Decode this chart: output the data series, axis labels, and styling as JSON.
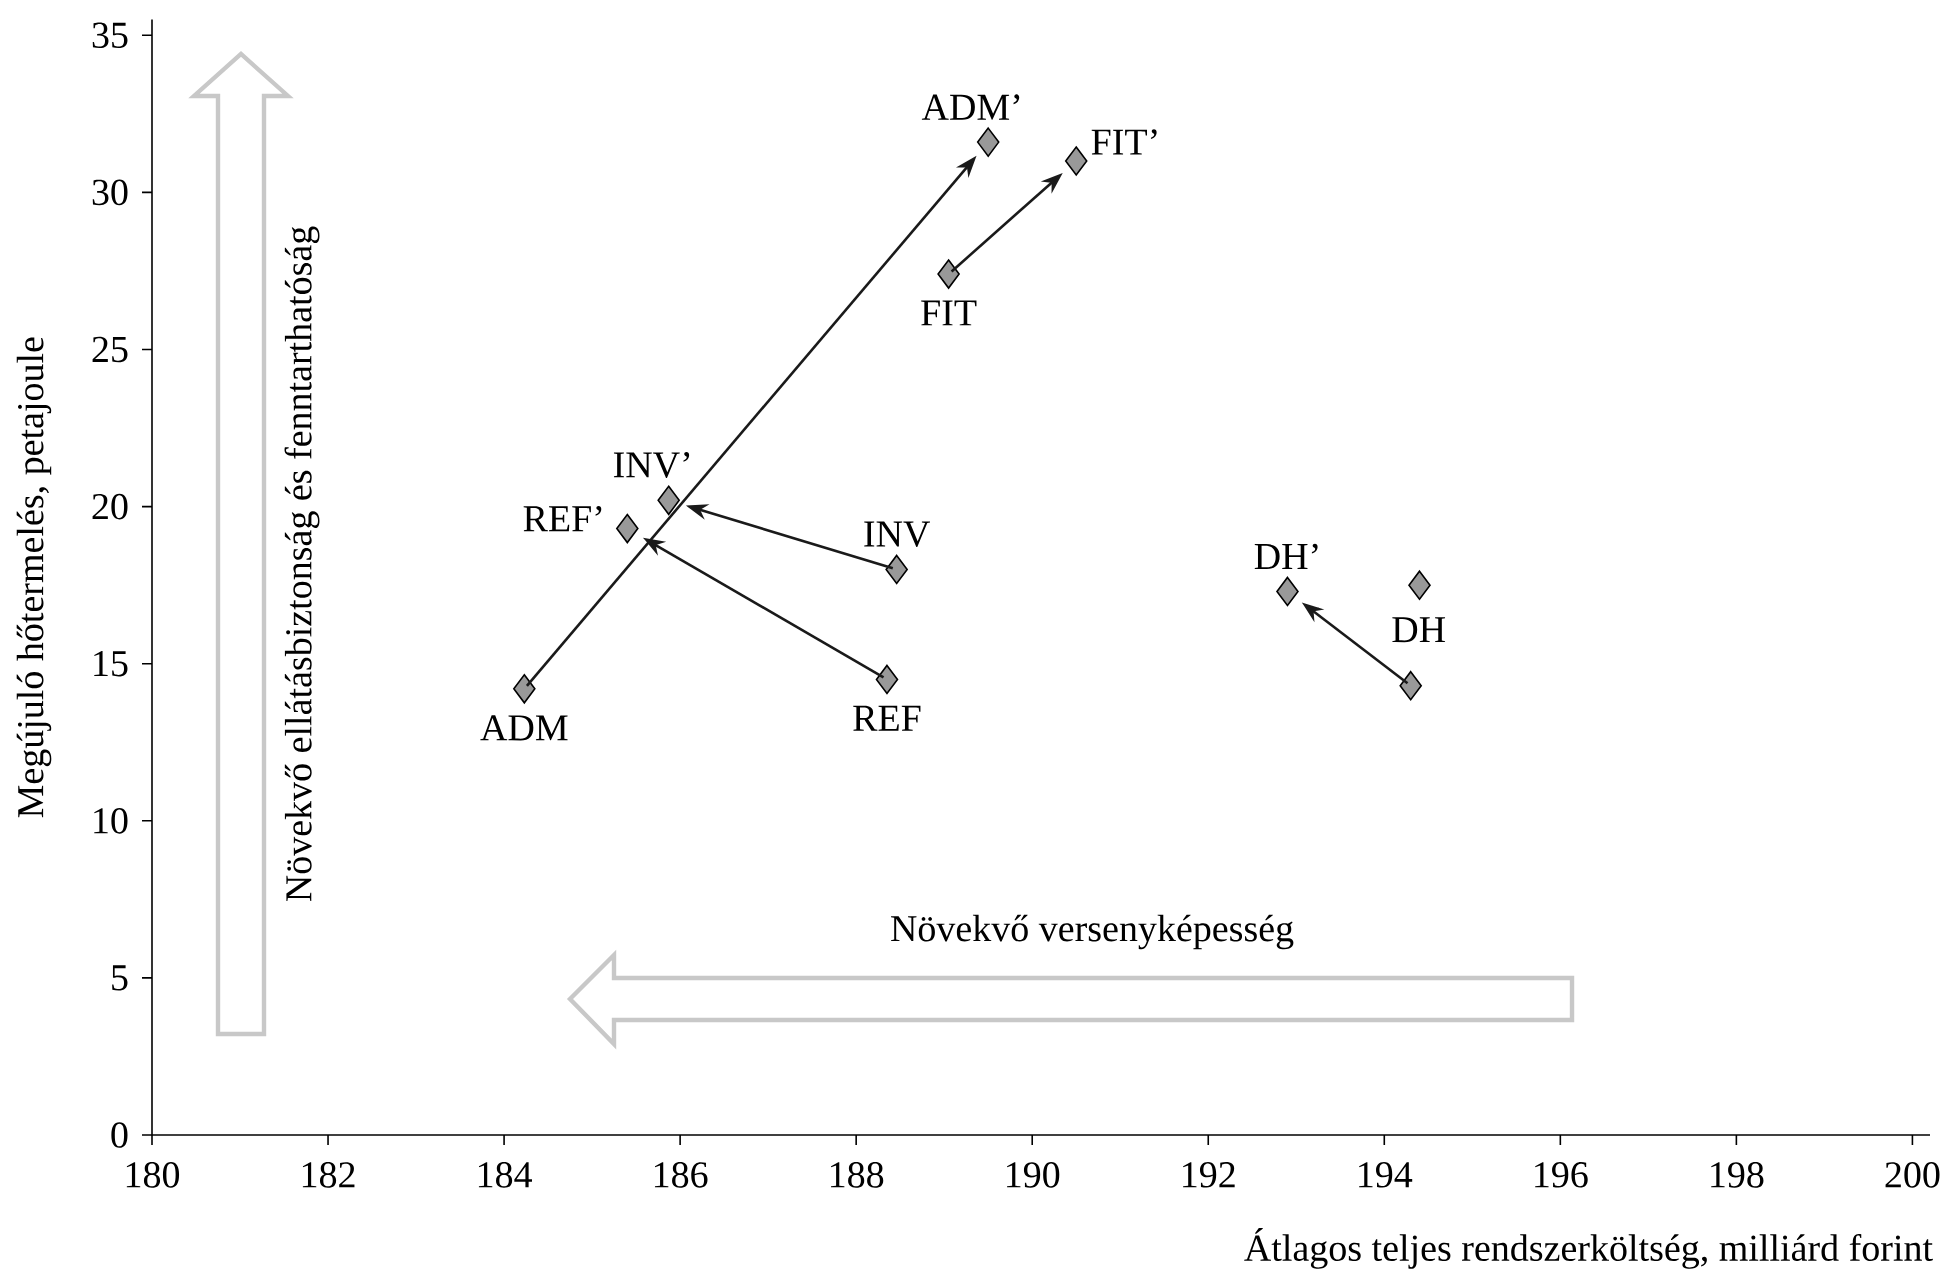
{
  "chart_data": {
    "type": "scatter",
    "xlabel": "Átlagos teljes rendszerköltség, milliárd forint",
    "ylabel": "Megújuló hőtermelés, petajoule",
    "xlim": [
      180,
      200.2
    ],
    "ylim": [
      0,
      35.5
    ],
    "xticks": [
      180,
      182,
      184,
      186,
      188,
      190,
      192,
      194,
      196,
      198,
      200
    ],
    "yticks": [
      0,
      5,
      10,
      15,
      20,
      25,
      30,
      35
    ],
    "marker": "diamond",
    "series": [
      {
        "color": "#999999",
        "x": [
          184.23,
          189.5,
          189.05,
          190.5,
          188.46,
          185.87,
          188.35,
          185.4,
          192.9,
          194.3,
          194.4
        ],
        "values": [
          14.2,
          31.6,
          27.4,
          31.0,
          18.0,
          20.2,
          14.5,
          19.3,
          17.3,
          14.3,
          17.5
        ]
      }
    ],
    "annotations": [
      {
        "text": "ADM",
        "x": 184.23,
        "y": 14.2
      },
      {
        "text": "ADM’",
        "x": 189.5,
        "y": 31.6
      },
      {
        "text": "FIT",
        "x": 189.05,
        "y": 27.4
      },
      {
        "text": "FIT’",
        "x": 190.5,
        "y": 31.0
      },
      {
        "text": "INV",
        "x": 188.46,
        "y": 18.0
      },
      {
        "text": "INV’",
        "x": 185.87,
        "y": 20.2
      },
      {
        "text": "REF",
        "x": 188.35,
        "y": 14.5
      },
      {
        "text": "REF’",
        "x": 185.4,
        "y": 19.3
      },
      {
        "text": "DH’",
        "x": 192.9,
        "y": 17.3
      },
      {
        "text": "DH",
        "x": 194.3,
        "y": 14.3
      },
      "Növekvő ellátásbiztonság és fenntarthatóság",
      "Növekvő versenyképesség"
    ]
  }
}
